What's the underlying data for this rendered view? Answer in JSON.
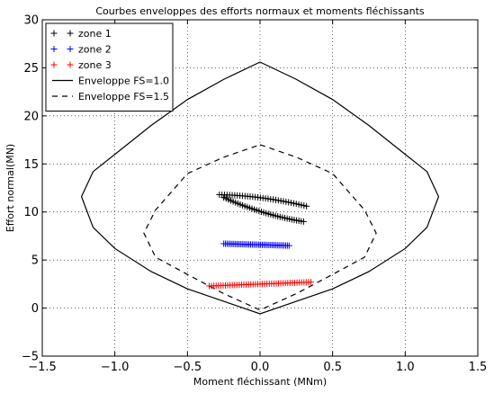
{
  "chart_data": {
    "type": "scatter",
    "title": "Courbes enveloppes des efforts normaux et moments fléchissants",
    "xlabel": "Moment fléchissant (MNm)",
    "ylabel": "Effort normal(MN)",
    "xlim": [
      -1.5,
      1.5
    ],
    "ylim": [
      -5,
      30
    ],
    "xticks": [
      -1.5,
      -1.0,
      -0.5,
      0.0,
      0.5,
      1.0,
      1.5
    ],
    "xtick_labels": [
      "−1.5",
      "−1.0",
      "−0.5",
      "0.0",
      "0.5",
      "1.0",
      "1.5"
    ],
    "yticks": [
      -5,
      0,
      5,
      10,
      15,
      20,
      25,
      30
    ],
    "ytick_labels": [
      "−5",
      "0",
      "5",
      "10",
      "15",
      "20",
      "25",
      "30"
    ],
    "grid": true,
    "legend_position": "top-left",
    "series": [
      {
        "name": "zone 1",
        "kind": "markers",
        "marker": "+",
        "color": "#000000",
        "segments": [
          {
            "x_start": -0.28,
            "y_start": 11.8,
            "x_end": 0.32,
            "y_end": 10.6,
            "points": 35,
            "sag": 0.25
          },
          {
            "x_start": -0.25,
            "y_start": 11.5,
            "x_end": 0.3,
            "y_end": 9.0,
            "points": 35,
            "sag": -0.3
          }
        ]
      },
      {
        "name": "zone 2",
        "kind": "markers",
        "marker": "+",
        "color": "#0000ff",
        "segments": [
          {
            "x_start": -0.25,
            "y_start": 6.7,
            "x_end": 0.2,
            "y_end": 6.5,
            "points": 40,
            "sag": 0
          }
        ]
      },
      {
        "name": "zone 3",
        "kind": "markers",
        "marker": "+",
        "color": "#ff0000",
        "segments": [
          {
            "x_start": -0.35,
            "y_start": 2.3,
            "x_end": 0.35,
            "y_end": 2.7,
            "points": 45,
            "sag": 0
          }
        ]
      },
      {
        "name": "Enveloppe FS=1.0",
        "kind": "line",
        "dash": "solid",
        "color": "#000000",
        "points": [
          [
            0.0,
            25.6
          ],
          [
            0.25,
            23.8
          ],
          [
            0.5,
            21.7
          ],
          [
            0.75,
            19.0
          ],
          [
            1.0,
            16.0
          ],
          [
            1.15,
            14.2
          ],
          [
            1.23,
            11.6
          ],
          [
            1.15,
            8.4
          ],
          [
            1.0,
            6.2
          ],
          [
            0.75,
            3.8
          ],
          [
            0.5,
            2.0
          ],
          [
            0.25,
            0.7
          ],
          [
            0.0,
            -0.6
          ],
          [
            -0.25,
            0.7
          ],
          [
            -0.5,
            2.0
          ],
          [
            -0.75,
            3.8
          ],
          [
            -1.0,
            6.2
          ],
          [
            -1.15,
            8.4
          ],
          [
            -1.23,
            11.6
          ],
          [
            -1.15,
            14.2
          ],
          [
            -1.0,
            16.0
          ],
          [
            -0.75,
            19.0
          ],
          [
            -0.5,
            21.7
          ],
          [
            -0.25,
            23.8
          ],
          [
            0.0,
            25.6
          ]
        ]
      },
      {
        "name": "Enveloppe FS=1.5",
        "kind": "line",
        "dash": "dashed",
        "color": "#000000",
        "points": [
          [
            0.0,
            17.0
          ],
          [
            0.25,
            15.7
          ],
          [
            0.5,
            14.0
          ],
          [
            0.72,
            10.2
          ],
          [
            0.8,
            7.8
          ],
          [
            0.72,
            5.3
          ],
          [
            0.5,
            3.5
          ],
          [
            0.25,
            1.5
          ],
          [
            0.0,
            -0.2
          ],
          [
            -0.25,
            1.5
          ],
          [
            -0.5,
            3.5
          ],
          [
            -0.72,
            5.3
          ],
          [
            -0.8,
            7.8
          ],
          [
            -0.72,
            10.2
          ],
          [
            -0.5,
            14.0
          ],
          [
            -0.25,
            15.7
          ],
          [
            0.0,
            17.0
          ]
        ]
      }
    ]
  }
}
